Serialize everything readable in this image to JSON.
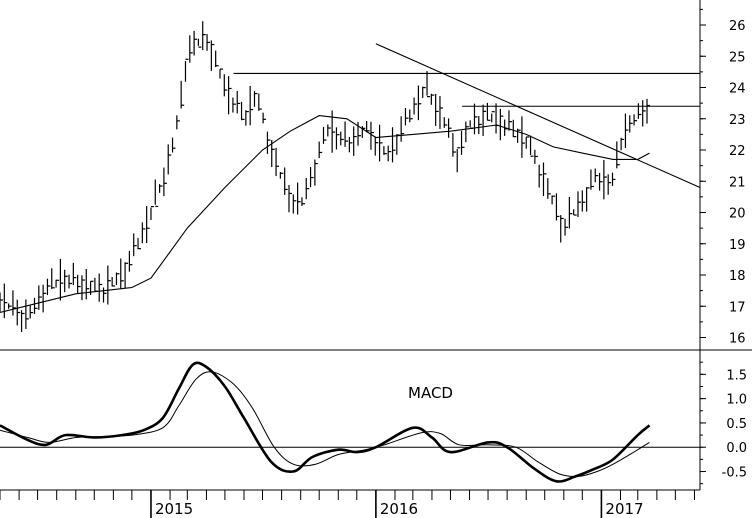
{
  "chart_data": [
    {
      "type": "ohlc",
      "panel": "price",
      "y_axis": {
        "range": [
          15.6,
          26.8
        ],
        "ticks": [
          16,
          17,
          18,
          19,
          20,
          21,
          22,
          23,
          24,
          25,
          26
        ],
        "side": "right"
      },
      "x_axis": {
        "range": [
          "2014-05-01",
          "2017-06-10"
        ],
        "ticks": [
          "2015",
          "2016",
          "2017"
        ]
      },
      "series": [
        {
          "kind": "price-bars",
          "anchors": [
            [
              "2014-05-01",
              17.2
            ],
            [
              "2014-06-15",
              16.6
            ],
            [
              "2014-07-10",
              17.5
            ],
            [
              "2014-08-10",
              17.9
            ],
            [
              "2014-09-15",
              17.7
            ],
            [
              "2014-10-15",
              17.5
            ],
            [
              "2014-11-15",
              18.0
            ],
            [
              "2014-12-15",
              19.2
            ],
            [
              "2015-01-20",
              21.0
            ],
            [
              "2015-02-15",
              23.0
            ],
            [
              "2015-03-01",
              25.2
            ],
            [
              "2015-04-01",
              25.6
            ],
            [
              "2015-05-01",
              24.0
            ],
            [
              "2015-06-01",
              23.0
            ],
            [
              "2015-06-20",
              23.8
            ],
            [
              "2015-07-15",
              22.0
            ],
            [
              "2015-08-10",
              20.6
            ],
            [
              "2015-09-01",
              20.2
            ],
            [
              "2015-09-25",
              21.6
            ],
            [
              "2015-10-15",
              22.7
            ],
            [
              "2015-11-15",
              22.2
            ],
            [
              "2015-12-15",
              22.7
            ],
            [
              "2016-01-20",
              21.8
            ],
            [
              "2016-02-15",
              22.8
            ],
            [
              "2016-03-20",
              24.0
            ],
            [
              "2016-04-20",
              23.0
            ],
            [
              "2016-05-10",
              21.8
            ],
            [
              "2016-06-01",
              22.8
            ],
            [
              "2016-07-01",
              23.1
            ],
            [
              "2016-08-01",
              22.8
            ],
            [
              "2016-09-01",
              22.3
            ],
            [
              "2016-10-01",
              21.0
            ],
            [
              "2016-10-30",
              19.5
            ],
            [
              "2016-12-01",
              20.4
            ],
            [
              "2016-12-20",
              21.1
            ],
            [
              "2017-01-20",
              21.0
            ],
            [
              "2017-02-05",
              22.6
            ],
            [
              "2017-03-01",
              23.1
            ],
            [
              "2017-03-20",
              23.5
            ]
          ]
        },
        {
          "kind": "moving-average",
          "points": [
            [
              "2014-05-01",
              16.8
            ],
            [
              "2014-09-01",
              17.4
            ],
            [
              "2014-12-01",
              17.6
            ],
            [
              "2015-01-01",
              17.9
            ],
            [
              "2015-03-01",
              19.5
            ],
            [
              "2015-05-01",
              20.8
            ],
            [
              "2015-07-01",
              22.0
            ],
            [
              "2015-08-15",
              22.6
            ],
            [
              "2015-10-01",
              23.1
            ],
            [
              "2015-11-15",
              23.0
            ],
            [
              "2016-01-01",
              22.4
            ],
            [
              "2016-03-01",
              22.5
            ],
            [
              "2016-05-01",
              22.6
            ],
            [
              "2016-07-15",
              22.8
            ],
            [
              "2016-09-01",
              22.5
            ],
            [
              "2016-10-15",
              22.1
            ],
            [
              "2016-12-01",
              21.9
            ],
            [
              "2017-01-20",
              21.7
            ],
            [
              "2017-03-01",
              21.7
            ],
            [
              "2017-03-20",
              21.9
            ]
          ]
        }
      ],
      "lines": [
        {
          "kind": "horizontal",
          "y": 24.45,
          "x_start": "2015-05-15",
          "x_end": "2017-06-10"
        },
        {
          "kind": "horizontal",
          "y": 23.4,
          "x_start": "2016-05-20",
          "x_end": "2017-06-10"
        },
        {
          "kind": "trendline",
          "points": [
            [
              "2016-01-01",
              25.4
            ],
            [
              "2017-06-10",
              20.8
            ]
          ]
        }
      ]
    },
    {
      "type": "line",
      "panel": "indicator",
      "title": "MACD",
      "y_axis": {
        "range": [
          -0.88,
          1.98
        ],
        "ticks": [
          "-0.5",
          "0.0",
          "0.5",
          "1.0",
          "1.5"
        ],
        "zero_line": true,
        "side": "right"
      },
      "series": [
        {
          "kind": "macd",
          "points": [
            [
              "2014-05-01",
              0.45
            ],
            [
              "2014-06-15",
              0.15
            ],
            [
              "2014-07-15",
              0.05
            ],
            [
              "2014-08-15",
              0.25
            ],
            [
              "2014-10-01",
              0.2
            ],
            [
              "2014-11-15",
              0.25
            ],
            [
              "2014-12-20",
              0.35
            ],
            [
              "2015-01-20",
              0.6
            ],
            [
              "2015-02-15",
              1.2
            ],
            [
              "2015-03-10",
              1.7
            ],
            [
              "2015-04-01",
              1.65
            ],
            [
              "2015-05-01",
              1.25
            ],
            [
              "2015-06-01",
              0.6
            ],
            [
              "2015-07-15",
              -0.3
            ],
            [
              "2015-08-20",
              -0.5
            ],
            [
              "2015-09-20",
              -0.2
            ],
            [
              "2015-11-01",
              -0.05
            ],
            [
              "2015-12-01",
              -0.1
            ],
            [
              "2016-01-01",
              0.0
            ],
            [
              "2016-03-01",
              0.4
            ],
            [
              "2016-04-01",
              0.2
            ],
            [
              "2016-05-01",
              -0.1
            ],
            [
              "2016-07-01",
              0.1
            ],
            [
              "2016-08-01",
              0.0
            ],
            [
              "2016-09-15",
              -0.45
            ],
            [
              "2016-10-20",
              -0.7
            ],
            [
              "2016-11-20",
              -0.6
            ],
            [
              "2016-12-20",
              -0.45
            ],
            [
              "2017-01-20",
              -0.25
            ],
            [
              "2017-03-01",
              0.25
            ],
            [
              "2017-03-20",
              0.45
            ]
          ]
        },
        {
          "kind": "signal",
          "points": [
            [
              "2014-05-01",
              0.35
            ],
            [
              "2014-06-15",
              0.2
            ],
            [
              "2014-07-20",
              0.1
            ],
            [
              "2014-09-01",
              0.2
            ],
            [
              "2014-10-15",
              0.22
            ],
            [
              "2014-12-01",
              0.25
            ],
            [
              "2015-01-20",
              0.4
            ],
            [
              "2015-02-15",
              0.85
            ],
            [
              "2015-03-15",
              1.4
            ],
            [
              "2015-04-10",
              1.55
            ],
            [
              "2015-05-15",
              1.3
            ],
            [
              "2015-06-15",
              0.8
            ],
            [
              "2015-07-20",
              0.0
            ],
            [
              "2015-08-20",
              -0.35
            ],
            [
              "2015-09-25",
              -0.35
            ],
            [
              "2015-11-01",
              -0.15
            ],
            [
              "2015-12-15",
              -0.05
            ],
            [
              "2016-01-15",
              0.05
            ],
            [
              "2016-03-15",
              0.3
            ],
            [
              "2016-04-15",
              0.28
            ],
            [
              "2016-05-15",
              0.05
            ],
            [
              "2016-07-01",
              0.05
            ],
            [
              "2016-08-15",
              0.0
            ],
            [
              "2016-09-20",
              -0.3
            ],
            [
              "2016-10-25",
              -0.55
            ],
            [
              "2016-11-25",
              -0.6
            ],
            [
              "2016-12-25",
              -0.5
            ],
            [
              "2017-01-20",
              -0.35
            ],
            [
              "2017-03-01",
              -0.05
            ],
            [
              "2017-03-20",
              0.1
            ]
          ]
        }
      ]
    }
  ]
}
